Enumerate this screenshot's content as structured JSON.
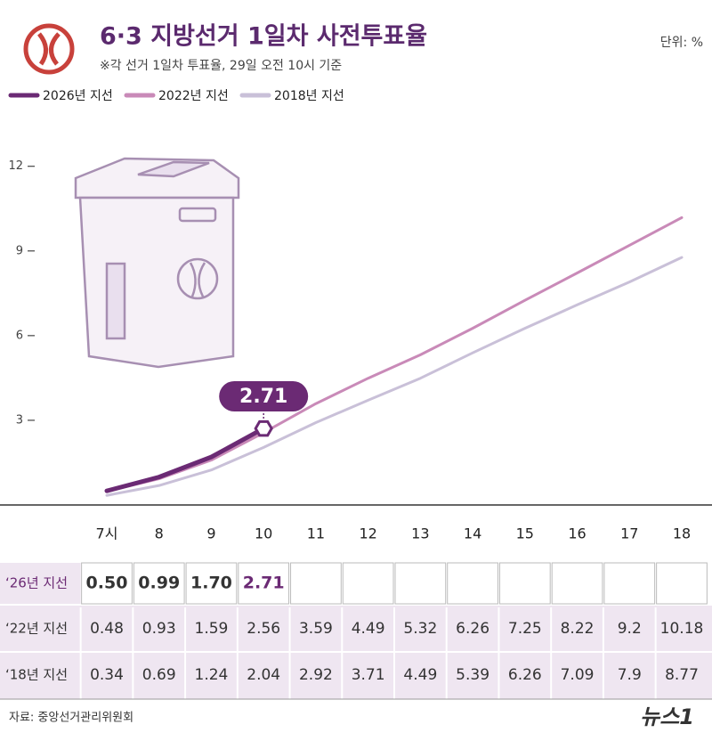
{
  "chart_data": {
    "type": "line",
    "title": "6·3 지방선거 1일차 사전투표율",
    "subtitle": "※각 선거 1일차 투표율, 29일 오전 10시 기준",
    "unit": "단위: %",
    "source": "자료: 중앙선거관리위원회",
    "logo": "뉴스1",
    "categories": [
      "7시",
      "8",
      "9",
      "10",
      "11",
      "12",
      "13",
      "14",
      "15",
      "16",
      "17",
      "18"
    ],
    "series": [
      {
        "name": "2026년 지선",
        "row_label": "‘26년 지선",
        "color": "#6b2a74",
        "values": [
          0.5,
          0.99,
          1.7,
          2.71,
          null,
          null,
          null,
          null,
          null,
          null,
          null,
          null
        ],
        "value_labels": [
          "0.50",
          "0.99",
          "1.70",
          "2.71",
          null,
          null,
          null,
          null,
          null,
          null,
          null,
          null
        ]
      },
      {
        "name": "2022년 지선",
        "row_label": "‘22년 지선",
        "color": "#c98ab8",
        "values": [
          0.48,
          0.93,
          1.59,
          2.56,
          3.59,
          4.49,
          5.32,
          6.26,
          7.25,
          8.22,
          9.2,
          10.18
        ]
      },
      {
        "name": "2018년 지선",
        "row_label": "‘18년 지선",
        "color": "#c9c0d8",
        "values": [
          0.34,
          0.69,
          1.24,
          2.04,
          2.92,
          3.71,
          4.49,
          5.39,
          6.26,
          7.09,
          7.9,
          8.77
        ]
      }
    ],
    "ylim": [
      0,
      13
    ],
    "yticks": [
      3,
      6,
      9,
      12
    ],
    "legend": "top-left"
  }
}
